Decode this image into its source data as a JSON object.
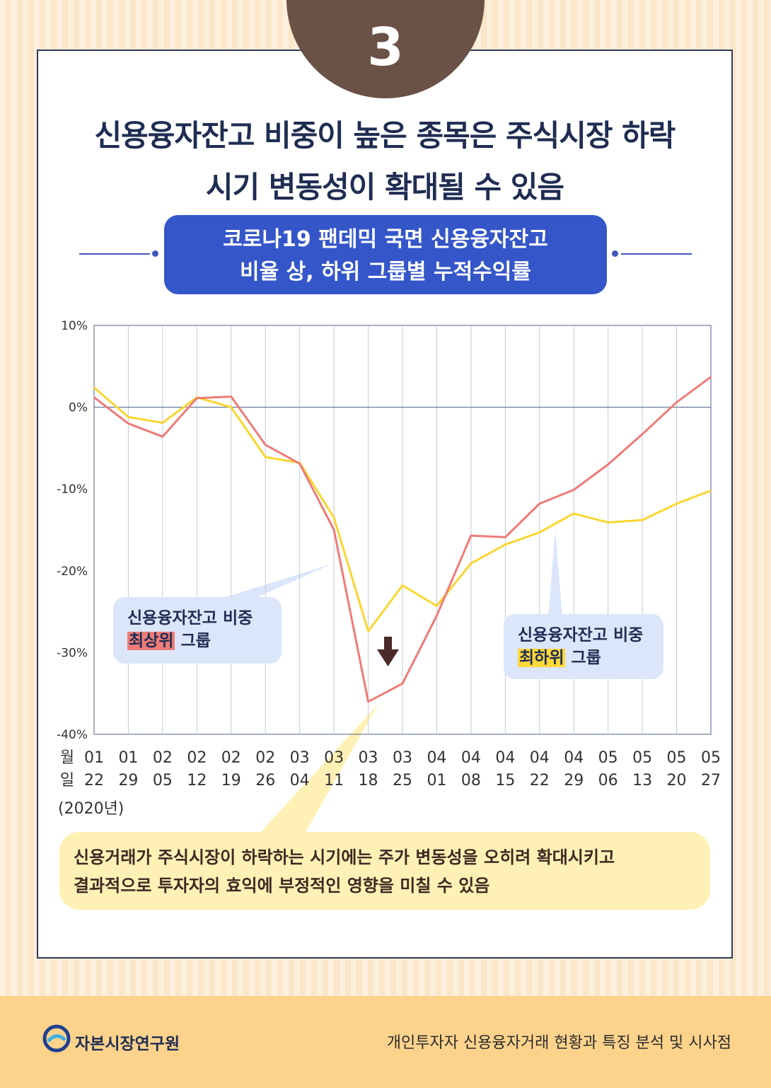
{
  "badge": {
    "number": "3"
  },
  "headline": {
    "line1": "신용융자잔고 비중이 높은 종목은 주식시장 하락",
    "line2": "시기 변동성이 확대될 수 있음"
  },
  "subtitle": {
    "line1": "코로나19 팬데믹 국면 신용융자잔고",
    "line2": "비율 상, 하위 그룹별 누적수익률"
  },
  "chart_data": {
    "type": "line",
    "title": "코로나19 팬데믹 국면 신용융자잔고 비율 상, 하위 그룹별 누적수익률",
    "x_header_month": "월",
    "x_header_day": "일",
    "x_year_label": "(2020년)",
    "x_months": [
      "01",
      "01",
      "02",
      "02",
      "02",
      "02",
      "03",
      "03",
      "03",
      "03",
      "04",
      "04",
      "04",
      "04",
      "04",
      "05",
      "05",
      "05",
      "05"
    ],
    "x_days": [
      "22",
      "29",
      "05",
      "12",
      "19",
      "26",
      "04",
      "11",
      "18",
      "25",
      "01",
      "08",
      "15",
      "22",
      "29",
      "06",
      "13",
      "20",
      "27"
    ],
    "y_ticks": [
      "10%",
      "0%",
      "-10%",
      "-20%",
      "-30%",
      "-40%"
    ],
    "ylim": [
      -40,
      10
    ],
    "grid": "vertical",
    "series": [
      {
        "name": "신용융자잔고 비중 최상위 그룹",
        "color": "#ee7b78",
        "values": [
          1.2,
          -2.0,
          -3.6,
          1.1,
          1.3,
          -4.6,
          -6.9,
          -15.0,
          -36.0,
          -33.8,
          -25.5,
          -15.7,
          -15.9,
          -11.8,
          -10.1,
          -7.0,
          -3.3,
          0.6,
          3.7
        ]
      },
      {
        "name": "신용융자잔고 비중 최하위 그룹",
        "color": "#fad631",
        "values": [
          2.4,
          -1.2,
          -1.9,
          1.2,
          0.0,
          -6.1,
          -6.8,
          -13.5,
          -27.4,
          -21.8,
          -24.3,
          -19.1,
          -16.8,
          -15.3,
          -13.0,
          -14.1,
          -13.8,
          -11.8,
          -10.2
        ]
      }
    ]
  },
  "callouts": {
    "top_group_line1": "신용융자잔고 비중",
    "top_group_highlight": "최상위",
    "top_group_suffix": " 그룹",
    "bottom_group_line1": "신용융자잔고 비중",
    "bottom_group_highlight": "최하위",
    "bottom_group_suffix": " 그룹"
  },
  "note": {
    "line1": "신용거래가 주식시장이 하락하는 시기에는 주가 변동성을 오히려 확대시키고",
    "line2": "결과적으로 투자자의 효익에 부정적인 영향을 미칠 수 있음"
  },
  "footer": {
    "organization": "자본시장연구원",
    "report_title": "개인투자자 신용융자거래 현황과 특징 분석 및 시사점"
  }
}
